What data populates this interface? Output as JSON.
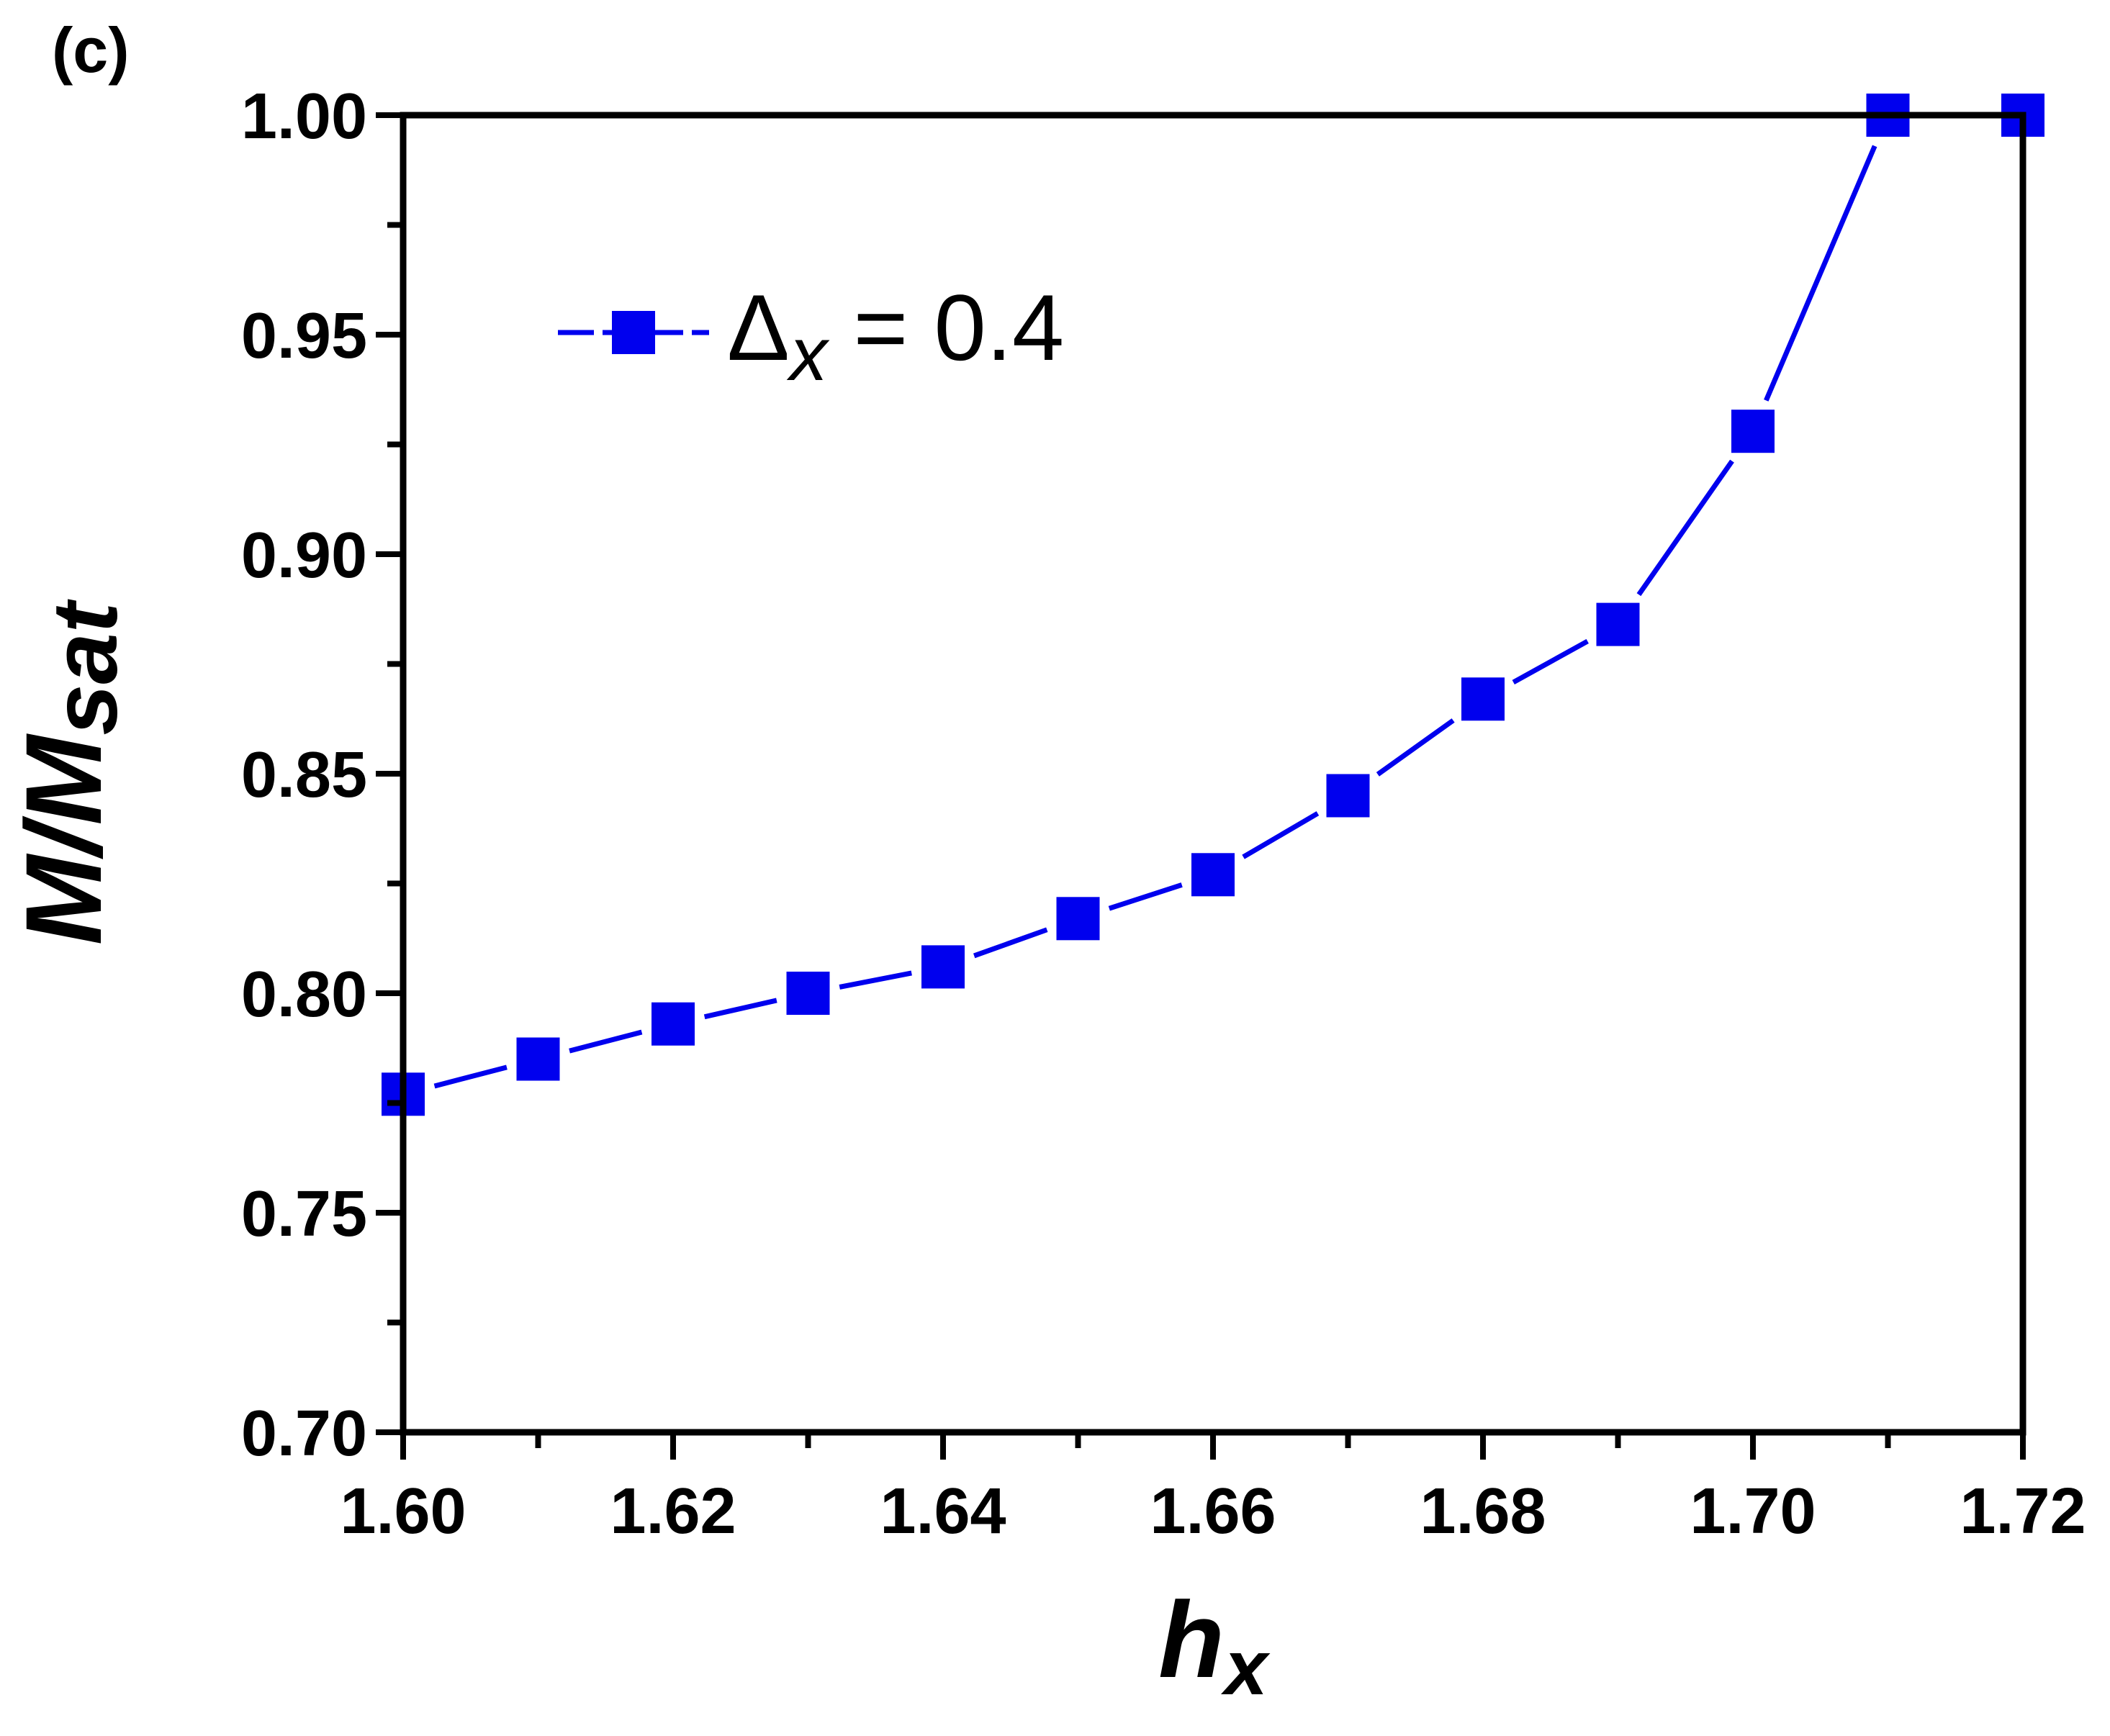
{
  "panel_label": "(c)",
  "chart_data": {
    "type": "line",
    "x": [
      1.6,
      1.61,
      1.62,
      1.63,
      1.64,
      1.65,
      1.66,
      1.67,
      1.68,
      1.69,
      1.7,
      1.71,
      1.72
    ],
    "series": [
      {
        "name_symbol": "Δ",
        "name_subscript": "x",
        "name_suffix": " = 0.4",
        "color": "#0000ee",
        "marker": "square",
        "values": [
          0.777,
          0.785,
          0.793,
          0.8,
          0.806,
          0.817,
          0.827,
          0.845,
          0.867,
          0.884,
          0.928,
          1.0,
          1.0
        ]
      }
    ],
    "xlabel": "h",
    "xlabel_subscript": "x",
    "ylabel": "M/M",
    "ylabel_subscript": "sat",
    "xlim": [
      1.6,
      1.72
    ],
    "ylim": [
      0.7,
      1.0
    ],
    "xticks": [
      "1.60",
      "1.62",
      "1.64",
      "1.66",
      "1.68",
      "1.70",
      "1.72"
    ],
    "yticks": [
      "0.70",
      "0.75",
      "0.80",
      "0.85",
      "0.90",
      "0.95",
      "1.00"
    ],
    "grid": false,
    "legend_position": "upper-left"
  }
}
